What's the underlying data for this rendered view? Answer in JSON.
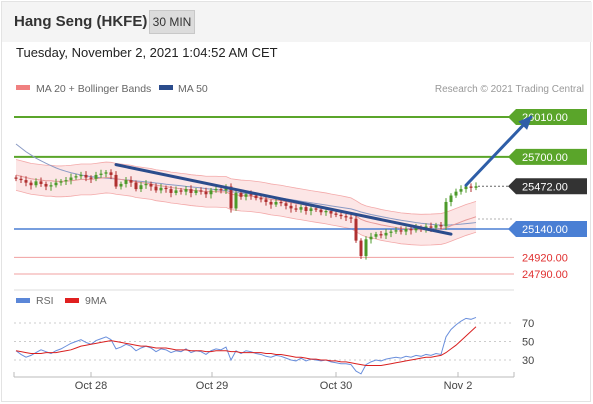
{
  "header": {
    "title": "Hang Seng (HKFE)",
    "interval": "30 MIN"
  },
  "timestamp": "Tuesday, November 2, 2021 1:04:52 AM CET",
  "chart_data": [
    {
      "type": "candlestick",
      "legend": [
        {
          "name": "MA 20 + Bollinger Bands",
          "color": "#f08080"
        },
        {
          "name": "MA 50",
          "color": "#2b4c8c"
        }
      ],
      "credit": "Research © 2021 Trading Central",
      "ylim": [
        24700,
        26150
      ],
      "price_levels": [
        {
          "label": "26010.00",
          "value": 26010,
          "kind": "resistance",
          "color": "#5aa52a"
        },
        {
          "label": "25700.00",
          "value": 25700,
          "kind": "resistance",
          "color": "#5aa52a"
        },
        {
          "label": "25472.00",
          "value": 25472,
          "kind": "last",
          "color": "#333333"
        },
        {
          "label": "25140.00",
          "value": 25140,
          "kind": "pivot",
          "color": "#4a7fd4"
        },
        {
          "label": "24920.00",
          "value": 24920,
          "kind": "support",
          "color": "#e03030"
        },
        {
          "label": "24790.00",
          "value": 24790,
          "kind": "support",
          "color": "#e03030"
        }
      ],
      "x_ticks": [
        "Oct 28",
        "Oct 29",
        "Oct 30",
        "Nov 2"
      ],
      "closes": [
        25530,
        25520,
        25500,
        25480,
        25510,
        25490,
        25470,
        25480,
        25500,
        25510,
        25520,
        25540,
        25550,
        25560,
        25540,
        25530,
        25560,
        25570,
        25580,
        25560,
        25470,
        25490,
        25520,
        25500,
        25450,
        25480,
        25490,
        25470,
        25440,
        25460,
        25450,
        25420,
        25440,
        25430,
        25450,
        25420,
        25440,
        25430,
        25410,
        25440,
        25450,
        25440,
        25470,
        25300,
        25420,
        25390,
        25410,
        25400,
        25380,
        25370,
        25350,
        25330,
        25350,
        25340,
        25320,
        25300,
        25290,
        25310,
        25280,
        25300,
        25290,
        25270,
        25280,
        25260,
        25250,
        25240,
        25230,
        25220,
        25050,
        24930,
        25060,
        25080,
        25100,
        25090,
        25110,
        25120,
        25130,
        25120,
        25140,
        25130,
        25150,
        25140,
        25160,
        25150,
        25170,
        25160,
        25350,
        25400,
        25430,
        25450,
        25470,
        25460,
        25472
      ],
      "ma20": [
        25560,
        25550,
        25540,
        25530,
        25525,
        25520,
        25515,
        25515,
        25510,
        25510,
        25512,
        25515,
        25520,
        25525,
        25525,
        25525,
        25530,
        25535,
        25540,
        25538,
        25530,
        25525,
        25520,
        25515,
        25505,
        25500,
        25495,
        25490,
        25480,
        25475,
        25470,
        25462,
        25458,
        25452,
        25448,
        25442,
        25438,
        25435,
        25430,
        25430,
        25430,
        25428,
        25428,
        25410,
        25405,
        25400,
        25398,
        25395,
        25390,
        25385,
        25378,
        25370,
        25365,
        25360,
        25352,
        25345,
        25338,
        25332,
        25325,
        25318,
        25312,
        25306,
        25300,
        25292,
        25285,
        25278,
        25270,
        25262,
        25240,
        25215,
        25200,
        25190,
        25182,
        25172,
        25165,
        25158,
        25152,
        25145,
        25142,
        25138,
        25136,
        25134,
        25135,
        25136,
        25138,
        25140,
        25150,
        25165,
        25180,
        25195,
        25210,
        25222,
        25235
      ],
      "ma50": [
        25800,
        25770,
        25740,
        25715,
        25690,
        25670,
        25650,
        25632,
        25615,
        25600,
        25588,
        25577,
        25568,
        25560,
        25553,
        25547,
        25542,
        25538,
        25535,
        25532,
        25528,
        25525,
        25522,
        25518,
        25513,
        25510,
        25506,
        25502,
        25497,
        25493,
        25488,
        25484,
        25480,
        25476,
        25471,
        25467,
        25463,
        25459,
        25454,
        25450,
        25446,
        25442,
        25438,
        25430,
        25425,
        25420,
        25416,
        25412,
        25407,
        25402,
        25396,
        25390,
        25385,
        25380,
        25374,
        25368,
        25362,
        25356,
        25350,
        25344,
        25338,
        25332,
        25326,
        25320,
        25314,
        25308,
        25302,
        25296,
        25285,
        25272,
        25262,
        25253,
        25245,
        25237,
        25229,
        25222,
        25215,
        25208,
        25202,
        25196,
        25190,
        25185,
        25181,
        25177,
        25173,
        25170,
        25170,
        25172,
        25175,
        25178,
        25182,
        25186,
        25190
      ],
      "bands_width": 120,
      "trendlines": [
        {
          "from": {
            "index": 20,
            "value": 25640
          },
          "to": {
            "index": 87,
            "value": 25100
          },
          "color": "#2b4c8c"
        },
        {
          "from": {
            "index": 90,
            "value": 25480
          },
          "to": {
            "index": 103,
            "value": 26010
          },
          "color": "#2e5ea8",
          "arrow": true
        }
      ]
    },
    {
      "type": "line",
      "legend": [
        {
          "name": "RSI",
          "color": "#5b87d8"
        },
        {
          "name": "9MA",
          "color": "#e02020"
        }
      ],
      "ylim": [
        10,
        90
      ],
      "y_ticks": [
        70,
        50,
        30
      ],
      "rsi": [
        40,
        36,
        33,
        35,
        38,
        41,
        39,
        37,
        40,
        42,
        45,
        48,
        50,
        52,
        49,
        47,
        51,
        53,
        55,
        52,
        42,
        44,
        47,
        45,
        40,
        43,
        45,
        43,
        39,
        42,
        41,
        38,
        40,
        39,
        42,
        38,
        40,
        39,
        36,
        40,
        42,
        41,
        44,
        30,
        40,
        37,
        40,
        39,
        37,
        36,
        34,
        33,
        35,
        34,
        32,
        30,
        29,
        32,
        29,
        31,
        30,
        29,
        30,
        28,
        27,
        26,
        26,
        25,
        18,
        15,
        25,
        28,
        30,
        29,
        31,
        32,
        33,
        32,
        34,
        33,
        35,
        34,
        36,
        35,
        37,
        36,
        55,
        63,
        68,
        72,
        75,
        74,
        76
      ],
      "ma9": [
        40,
        39,
        38,
        37,
        37,
        37,
        38,
        38,
        38,
        39,
        40,
        41,
        43,
        45,
        46,
        47,
        48,
        49,
        50,
        51,
        50,
        49,
        48,
        47,
        46,
        45,
        45,
        44,
        43,
        43,
        43,
        42,
        41,
        41,
        41,
        40,
        40,
        40,
        39,
        39,
        40,
        40,
        40,
        39,
        39,
        38,
        38,
        38,
        38,
        38,
        37,
        37,
        36,
        36,
        35,
        34,
        33,
        33,
        32,
        31,
        31,
        30,
        30,
        29,
        29,
        28,
        28,
        27,
        26,
        25,
        24,
        24,
        24,
        24,
        25,
        26,
        27,
        28,
        29,
        30,
        31,
        32,
        33,
        33,
        34,
        35,
        38,
        42,
        46,
        51,
        56,
        61,
        66
      ]
    }
  ]
}
